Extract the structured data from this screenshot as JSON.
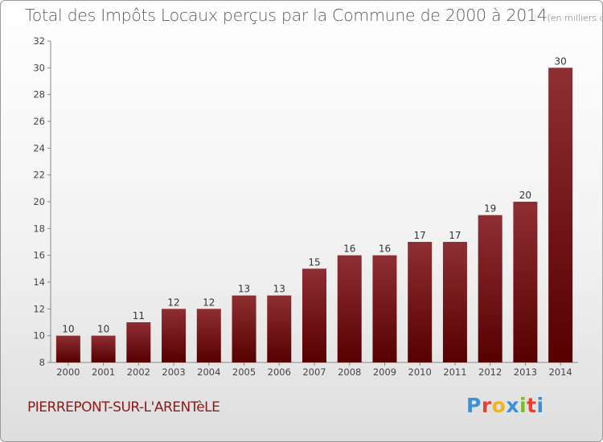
{
  "page": {
    "title": "Total des Impôts Locaux perçus par la Commune de 2000 à 2014",
    "unit": "(en milliers d'€)",
    "commune": "PIERREPONT-SUR-L'ARENTèLE",
    "logo_letters": [
      "P",
      "r",
      "o",
      "x",
      "i",
      "t",
      "i"
    ],
    "logo_colors": [
      "#3e8fd3",
      "#e5412d",
      "#f2b21b",
      "#3e8fd3",
      "#7bbd2a",
      "#e5412d",
      "#3e8fd3"
    ]
  },
  "chart_data": {
    "type": "bar",
    "title": "Total des Impôts Locaux perçus par la Commune de 2000 à 2014",
    "xlabel": "",
    "ylabel": "",
    "categories": [
      "2000",
      "2001",
      "2002",
      "2003",
      "2004",
      "2005",
      "2006",
      "2007",
      "2008",
      "2009",
      "2010",
      "2011",
      "2012",
      "2013",
      "2014"
    ],
    "values": [
      10,
      10,
      11,
      12,
      12,
      13,
      13,
      15,
      16,
      16,
      17,
      17,
      19,
      20,
      30
    ],
    "ylim": [
      8,
      32
    ],
    "yticks": [
      8,
      10,
      12,
      14,
      16,
      18,
      20,
      22,
      24,
      26,
      28,
      30,
      32
    ],
    "grid": false,
    "bar_color": "#7a0a0a"
  }
}
